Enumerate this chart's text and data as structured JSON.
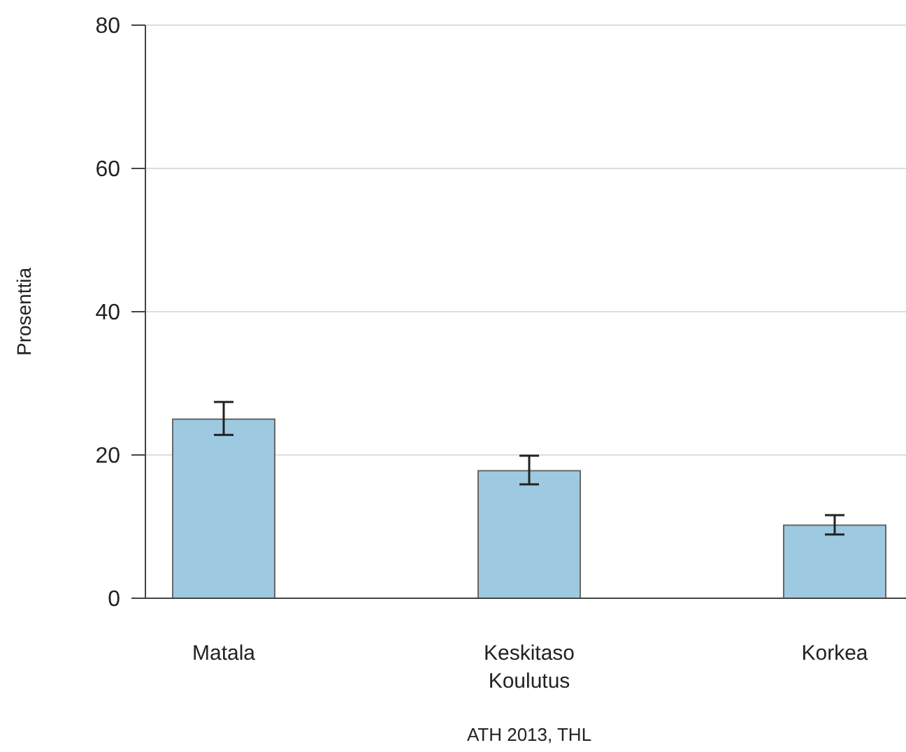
{
  "chart_data": {
    "type": "bar",
    "ylabel": "Prosenttia",
    "xlabel": "Koulutus",
    "categories": [
      "Matala",
      "Keskitaso",
      "Korkea"
    ],
    "values": [
      25.0,
      17.8,
      10.2
    ],
    "errors": [
      [
        22.8,
        27.4
      ],
      [
        15.9,
        19.9
      ],
      [
        8.9,
        11.6
      ]
    ],
    "color": "#9ecae1",
    "ylim": [
      0,
      80
    ],
    "yticks": [
      0,
      20,
      40,
      60,
      80
    ],
    "grid": "y",
    "annotations": [
      "ATH 2013, THL"
    ]
  }
}
